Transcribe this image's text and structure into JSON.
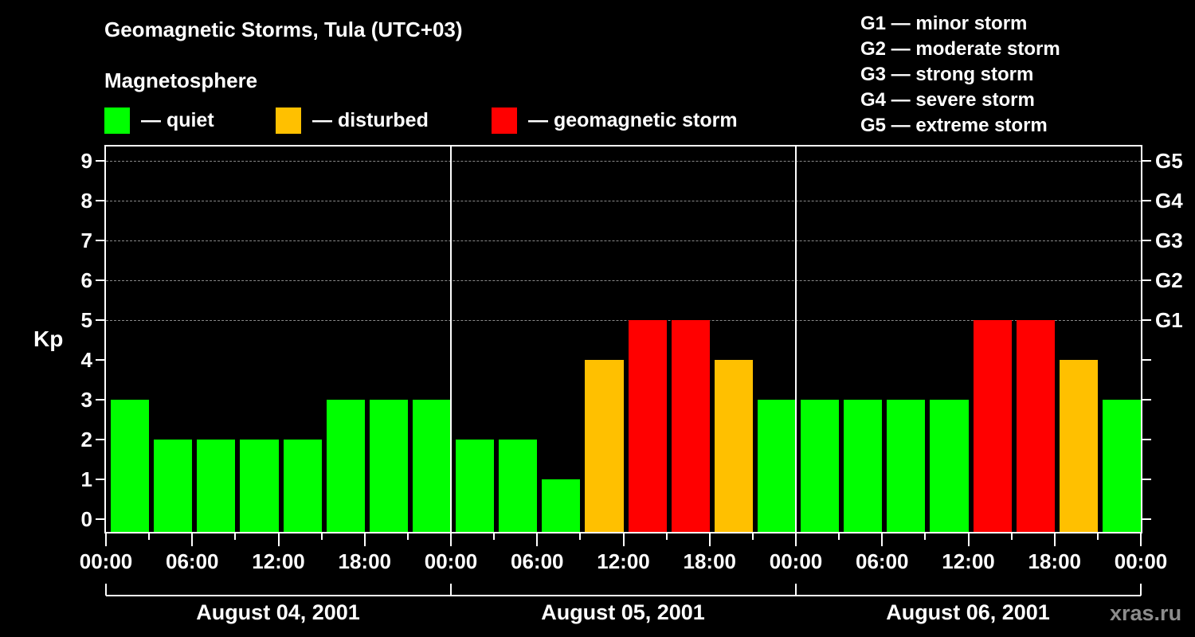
{
  "title": "Geomagnetic Storms, Tula (UTC+03)",
  "subtitle": "Magnetosphere",
  "legend": [
    {
      "label": "— quiet",
      "color": "#00ff00"
    },
    {
      "label": "— disturbed",
      "color": "#ffc000"
    },
    {
      "label": "— geomagnetic storm",
      "color": "#ff0000"
    }
  ],
  "g_scale": [
    "G1 — minor storm",
    "G2 — moderate storm",
    "G3 — strong storm",
    "G4 — severe storm",
    "G5 — extreme storm"
  ],
  "watermark": "xras.ru",
  "colors": {
    "quiet": "#00ff00",
    "disturbed": "#ffc000",
    "storm": "#ff0000",
    "background": "#000000",
    "grid": "#8a8a8a"
  },
  "chart_data": {
    "type": "bar",
    "title": "Geomagnetic Storms, Tula (UTC+03)",
    "ylabel": "Kp",
    "ylim": [
      0,
      9
    ],
    "yticks": [
      0,
      1,
      2,
      3,
      4,
      5,
      6,
      7,
      8,
      9
    ],
    "right_axis_labels": {
      "5": "G1",
      "6": "G2",
      "7": "G3",
      "8": "G4",
      "9": "G5"
    },
    "grid": "dashed horizontal at Kp 5-9",
    "xtick_labels": [
      "00:00",
      "06:00",
      "12:00",
      "18:00",
      "00:00",
      "06:00",
      "12:00",
      "18:00",
      "00:00",
      "06:00",
      "12:00",
      "18:00",
      "00:00"
    ],
    "days": [
      "August 04, 2001",
      "August 05, 2001",
      "August 06, 2001"
    ],
    "interval_hours": 3,
    "series": [
      {
        "name": "August 04, 2001",
        "values": [
          3,
          2,
          2,
          2,
          2,
          3,
          3,
          3
        ]
      },
      {
        "name": "August 05, 2001",
        "values": [
          2,
          2,
          1,
          4,
          5,
          5,
          4,
          3
        ]
      },
      {
        "name": "August 06, 2001",
        "values": [
          3,
          3,
          3,
          3,
          5,
          5,
          4,
          3
        ]
      }
    ],
    "values": [
      3,
      2,
      2,
      2,
      2,
      3,
      3,
      3,
      2,
      2,
      1,
      4,
      5,
      5,
      4,
      3,
      3,
      3,
      3,
      3,
      5,
      5,
      4,
      3
    ],
    "category_rule": {
      "quiet": "Kp < 4",
      "disturbed": "Kp = 4",
      "storm": "Kp >= 5"
    }
  }
}
